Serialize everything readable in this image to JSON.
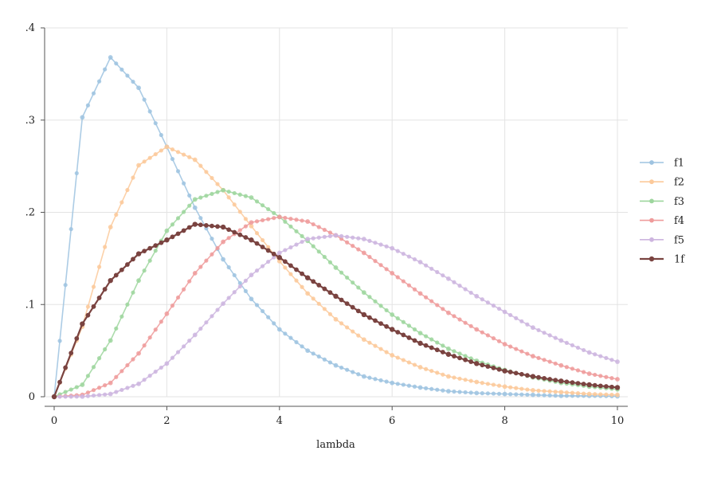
{
  "chart_data": {
    "type": "line",
    "title": "",
    "xlabel": "lambda",
    "ylabel": "",
    "xlim": [
      0,
      10
    ],
    "ylim": [
      0,
      0.4
    ],
    "x_ticks": [
      0,
      2,
      4,
      6,
      8,
      10
    ],
    "x_tick_labels": [
      "0",
      "2",
      "4",
      "6",
      "8",
      "10"
    ],
    "y_ticks": [
      0,
      0.1,
      0.2,
      0.3,
      0.4
    ],
    "y_tick_labels": [
      "0",
      ".1",
      ".2",
      ".3",
      ".4"
    ],
    "grid": true,
    "legend_position": "right",
    "x": [
      0,
      0.5,
      1,
      1.5,
      2,
      2.5,
      3,
      3.5,
      4,
      4.5,
      5,
      5.5,
      6,
      6.5,
      7,
      7.5,
      8,
      8.5,
      9,
      9.5,
      10
    ],
    "series": [
      {
        "name": "f1",
        "color": "#9ec3e0",
        "values": [
          0,
          0.303,
          0.368,
          0.335,
          0.271,
          0.205,
          0.149,
          0.106,
          0.073,
          0.05,
          0.034,
          0.022,
          0.015,
          0.01,
          0.006,
          0.004,
          0.003,
          0.002,
          0.001,
          0.001,
          0.0005
        ]
      },
      {
        "name": "f2",
        "color": "#fcc99a",
        "values": [
          0,
          0.076,
          0.184,
          0.251,
          0.271,
          0.257,
          0.224,
          0.185,
          0.147,
          0.112,
          0.084,
          0.062,
          0.045,
          0.032,
          0.022,
          0.016,
          0.011,
          0.007,
          0.005,
          0.003,
          0.002
        ]
      },
      {
        "name": "f3",
        "color": "#9dd69d",
        "values": [
          0,
          0.013,
          0.061,
          0.126,
          0.18,
          0.214,
          0.224,
          0.216,
          0.195,
          0.169,
          0.14,
          0.113,
          0.089,
          0.069,
          0.052,
          0.039,
          0.029,
          0.021,
          0.015,
          0.011,
          0.008
        ]
      },
      {
        "name": "f4",
        "color": "#ef9b9b",
        "values": [
          0,
          0.002,
          0.015,
          0.047,
          0.09,
          0.134,
          0.168,
          0.189,
          0.195,
          0.19,
          0.175,
          0.156,
          0.134,
          0.112,
          0.091,
          0.073,
          0.057,
          0.044,
          0.034,
          0.025,
          0.019
        ]
      },
      {
        "name": "f5",
        "color": "#cdb5df",
        "values": [
          0,
          0.0002,
          0.003,
          0.014,
          0.036,
          0.067,
          0.101,
          0.132,
          0.156,
          0.171,
          0.175,
          0.171,
          0.161,
          0.146,
          0.128,
          0.109,
          0.092,
          0.075,
          0.061,
          0.048,
          0.038
        ]
      },
      {
        "name": "1f",
        "color": "#7a4340",
        "values": [
          0,
          0.079,
          0.126,
          0.155,
          0.17,
          0.187,
          0.184,
          0.17,
          0.151,
          0.129,
          0.109,
          0.089,
          0.073,
          0.058,
          0.046,
          0.036,
          0.028,
          0.022,
          0.017,
          0.013,
          0.01
        ]
      }
    ]
  }
}
